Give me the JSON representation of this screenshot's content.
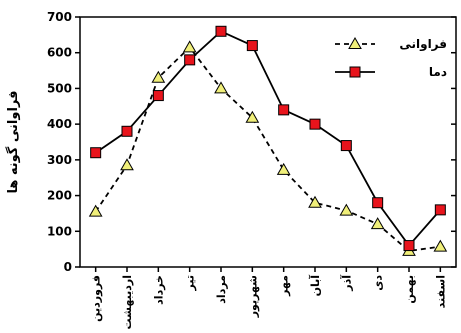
{
  "chart_data": {
    "type": "line",
    "title": "",
    "xlabel": "",
    "ylabel": "فراوانی گونه ها",
    "ylim": [
      0,
      700
    ],
    "yticks": [
      0,
      100,
      200,
      300,
      400,
      500,
      600,
      700
    ],
    "categories": [
      "فروردین",
      "اردیبهشت",
      "خرداد",
      "تیر",
      "مرداد",
      "شهریور",
      "مهر",
      "آبان",
      "آذر",
      "دی",
      "بهمن",
      "اسفند"
    ],
    "grid": false,
    "legend_position": "top-right",
    "series": [
      {
        "name": "فراوانی",
        "values": [
          155,
          285,
          530,
          615,
          500,
          418,
          272,
          180,
          158,
          120,
          45,
          57
        ],
        "line_color": "#000000",
        "line_style": "dashed",
        "marker": "triangle",
        "marker_fill": "#f0ef7a"
      },
      {
        "name": "دما",
        "values": [
          320,
          380,
          480,
          580,
          660,
          620,
          440,
          400,
          340,
          180,
          60,
          160
        ],
        "line_color": "#000000",
        "line_style": "solid",
        "marker": "square",
        "marker_fill": "#e8141c"
      }
    ]
  }
}
